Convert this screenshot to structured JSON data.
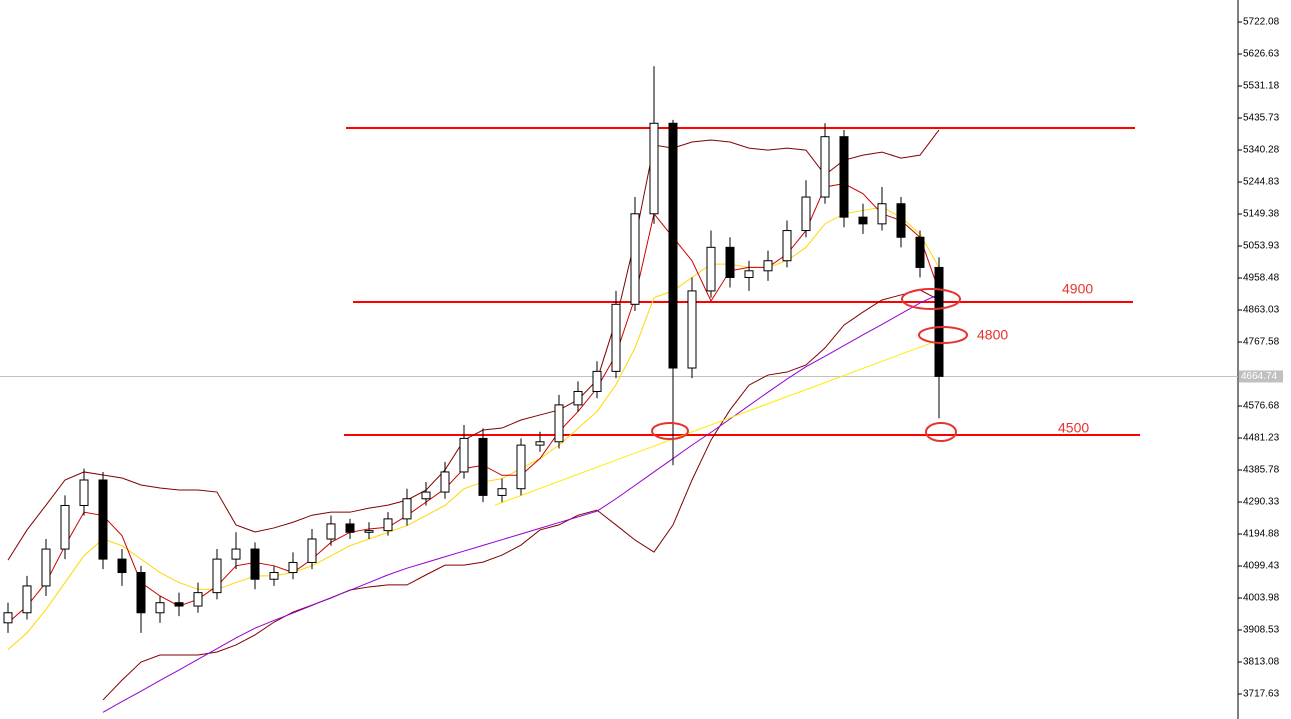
{
  "chart_data": {
    "type": "candlestick",
    "open": [
      3930,
      3960,
      4040,
      4150,
      4280,
      4356,
      4120,
      4080,
      3960,
      3990,
      3980,
      4020,
      4120,
      4150,
      4060,
      4080,
      4110,
      4180,
      4225,
      4200,
      4205,
      4240,
      4300,
      4320,
      4380,
      4480,
      4310,
      4330,
      4460,
      4470,
      4580,
      4620,
      4680,
      4880,
      5150,
      5420,
      4690,
      4920,
      5050,
      4960,
      4980,
      5010,
      5100,
      5200,
      5380,
      5140,
      5120,
      5180,
      5080,
      4990
    ],
    "high": [
      3990,
      4070,
      4180,
      4310,
      4390,
      4380,
      4150,
      4100,
      4010,
      4020,
      4050,
      4150,
      4200,
      4170,
      4100,
      4140,
      4210,
      4250,
      4240,
      4230,
      4260,
      4330,
      4350,
      4410,
      4520,
      4510,
      4360,
      4480,
      4500,
      4610,
      4650,
      4710,
      4920,
      5200,
      5590,
      5430,
      4960,
      5100,
      5080,
      5010,
      5040,
      5130,
      5250,
      5420,
      5400,
      5180,
      5230,
      5200,
      5100,
      5020
    ],
    "low": [
      3900,
      3940,
      4010,
      4120,
      4250,
      4090,
      4040,
      3900,
      3930,
      3950,
      3960,
      4000,
      4090,
      4030,
      4040,
      4060,
      4090,
      4160,
      4180,
      4180,
      4190,
      4220,
      4280,
      4300,
      4360,
      4290,
      4290,
      4310,
      4440,
      4450,
      4560,
      4600,
      4660,
      4860,
      5120,
      4400,
      4660,
      4900,
      4930,
      4920,
      4950,
      4990,
      5080,
      5180,
      5110,
      5090,
      5100,
      5050,
      4960,
      4540
    ],
    "close": [
      3960,
      4040,
      4150,
      4280,
      4356,
      4120,
      4080,
      3960,
      3990,
      3980,
      4020,
      4120,
      4150,
      4060,
      4080,
      4110,
      4180,
      4225,
      4200,
      4205,
      4240,
      4300,
      4320,
      4380,
      4480,
      4310,
      4330,
      4460,
      4470,
      4580,
      4620,
      4680,
      4880,
      5150,
      5420,
      4690,
      4920,
      5050,
      4960,
      4980,
      5010,
      5100,
      5200,
      5380,
      5140,
      5120,
      5180,
      5080,
      4990,
      4665
    ],
    "series": [
      {
        "color": "#800000",
        "values": [
          4117,
          4207,
          4281,
          4356,
          4380,
          4371,
          4362,
          4341,
          4332,
          4326,
          4326,
          4320,
          4222,
          4201,
          4213,
          4230,
          4251,
          4260,
          4260,
          4272,
          4281,
          4296,
          4326,
          4386,
          4475,
          4505,
          4511,
          4535,
          4550,
          4565,
          4595,
          4654,
          4833,
          5072,
          5355,
          5346,
          5364,
          5370,
          5364,
          5346,
          5340,
          5346,
          5340,
          5266,
          5310,
          5325,
          5334,
          5316,
          5325,
          5400
        ]
      },
      {
        "color": "#800000",
        "values": [
          null,
          null,
          null,
          null,
          null,
          3700,
          3759,
          3813,
          3834,
          3834,
          3834,
          3843,
          3864,
          3894,
          3932,
          3962,
          3983,
          4004,
          4028,
          4037,
          4043,
          4043,
          4073,
          4102,
          4102,
          4111,
          4132,
          4162,
          4207,
          4222,
          4251,
          4266,
          4222,
          4177,
          4141,
          4222,
          4356,
          4475,
          4565,
          4639,
          4669,
          4678,
          4699,
          4750,
          4818,
          4857,
          4893,
          4908,
          4923,
          4893
        ]
      },
      {
        "color": "#9400d3",
        "values": [
          null,
          null,
          null,
          null,
          null,
          3663,
          3695,
          3726,
          3758,
          3789,
          3821,
          3853,
          3885,
          3914,
          3937,
          3959,
          3982,
          4005,
          4027,
          4050,
          4073,
          4093,
          4110,
          4127,
          4144,
          4161,
          4178,
          4195,
          4212,
          4229,
          4246,
          4263,
          4300,
          4340,
          4380,
          4420,
          4460,
          4498,
          4538,
          4578,
          4618,
          4657,
          4694,
          4725,
          4757,
          4789,
          4820,
          4852,
          4884,
          4910
        ]
      },
      {
        "color": "#ffd700",
        "values": [
          3850,
          3900,
          3970,
          4050,
          4130,
          4180,
          4160,
          4120,
          4080,
          4050,
          4030,
          4030,
          4050,
          4070,
          4070,
          4080,
          4100,
          4130,
          4160,
          4180,
          4200,
          4220,
          4250,
          4280,
          4330,
          4350,
          4360,
          4390,
          4420,
          4460,
          4510,
          4560,
          4640,
          4750,
          4900,
          4920,
          4960,
          5000,
          5000,
          4990,
          4990,
          5010,
          5050,
          5120,
          5150,
          5160,
          5170,
          5140,
          5090,
          4990
        ]
      },
      {
        "color": "#cc0000",
        "values": [
          3930,
          3980,
          4050,
          4160,
          4260,
          4250,
          4190,
          4050,
          4010,
          3980,
          4000,
          4040,
          4100,
          4110,
          4100,
          4080,
          4120,
          4170,
          4200,
          4210,
          4215,
          4250,
          4290,
          4330,
          4390,
          4400,
          4370,
          4370,
          4420,
          4500,
          4560,
          4630,
          4730,
          4900,
          5150,
          5080,
          5010,
          4890,
          4980,
          4990,
          4990,
          5030,
          5100,
          5230,
          5240,
          5210,
          5150,
          5130,
          5080,
          4920
        ]
      }
    ],
    "levels": [
      5405.9,
      4886.8,
      4490.2
    ],
    "level_color": "#ff0000",
    "trendline": {
      "color": "#ffea00",
      "from": 4281,
      "to": 4773
    },
    "annotations": [
      "4900",
      "4800",
      "4500"
    ],
    "current_price": 4664.74,
    "ylim": [
      3643.1,
      5787.7
    ],
    "yticks": [
      5722.08,
      5626.63,
      5531.18,
      5435.73,
      5340.28,
      5244.83,
      5149.38,
      5053.93,
      4958.48,
      4863.03,
      4767.58,
      4576.68,
      4481.23,
      4385.78,
      4290.33,
      4194.88,
      4099.43,
      4003.98,
      3908.53,
      3813.08,
      3717.63
    ]
  }
}
